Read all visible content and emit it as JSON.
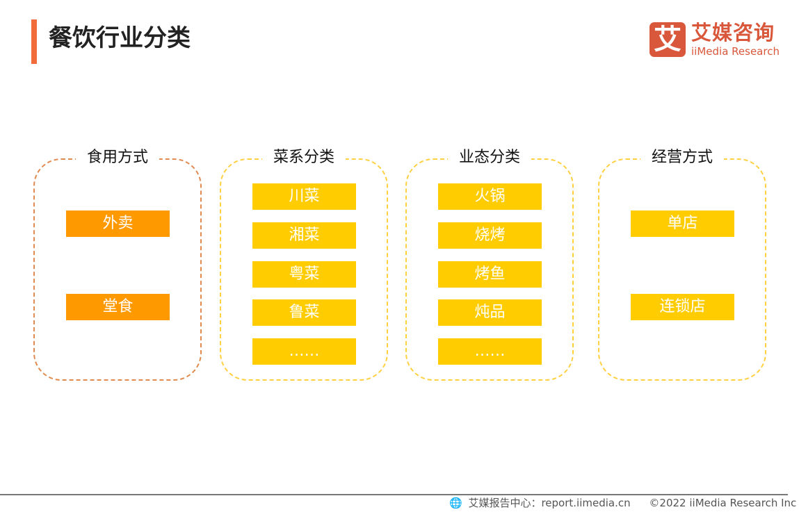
{
  "header": {
    "title": "餐饮行业分类"
  },
  "logo": {
    "mark": "艾",
    "cn": "艾媒咨询",
    "en": "iiMedia Research"
  },
  "groups": [
    {
      "title": "食用方式",
      "items": [
        "外卖",
        "堂食"
      ]
    },
    {
      "title": "菜系分类",
      "items": [
        "川菜",
        "湘菜",
        "粤菜",
        "鲁菜",
        "……"
      ]
    },
    {
      "title": "业态分类",
      "items": [
        "火锅",
        "烧烤",
        "烤鱼",
        "炖品",
        "……"
      ]
    },
    {
      "title": "经营方式",
      "items": [
        "单店",
        "连锁店"
      ]
    }
  ],
  "footer": {
    "source": "艾媒报告中心：report.iimedia.cn",
    "copyright": "©2022  iiMedia Research  Inc"
  },
  "colors": {
    "accent": "#F26B3A",
    "brand": "#D9573B",
    "orange_item": "#FF9900",
    "yellow_item": "#FFCC00"
  }
}
